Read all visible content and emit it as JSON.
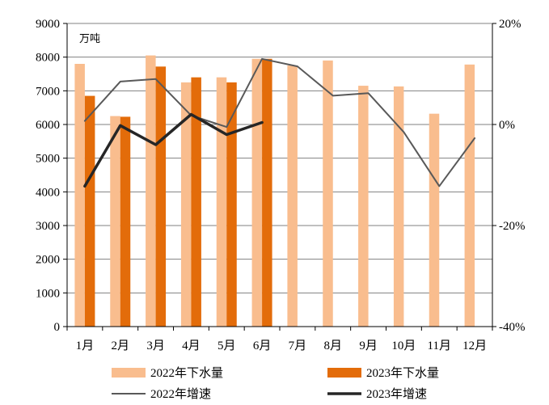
{
  "chart_data": {
    "type": "bar",
    "unit_label": "万吨",
    "categories": [
      "1月",
      "2月",
      "3月",
      "4月",
      "5月",
      "6月",
      "7月",
      "8月",
      "9月",
      "10月",
      "11月",
      "12月"
    ],
    "left_axis": {
      "ylim": [
        0,
        9000
      ],
      "ticks": [
        "0",
        "1000",
        "2000",
        "3000",
        "4000",
        "5000",
        "6000",
        "7000",
        "8000",
        "9000"
      ]
    },
    "right_axis": {
      "ylim": [
        -40,
        20
      ],
      "ticks": [
        "-40%",
        "-20%",
        "0%",
        "20%"
      ]
    },
    "grid": true,
    "legend_position": "bottom",
    "series": [
      {
        "name": "2022年下水量",
        "type": "bar",
        "axis": "left",
        "color": "#F9BD8E",
        "values": [
          7800,
          6250,
          8050,
          7250,
          7400,
          7950,
          7750,
          7900,
          7150,
          7130,
          6320,
          7780
        ]
      },
      {
        "name": "2023年下水量",
        "type": "bar",
        "axis": "left",
        "color": "#E36C0A",
        "values": [
          6850,
          6230,
          7720,
          7400,
          7250,
          7950,
          null,
          null,
          null,
          null,
          null,
          null
        ]
      },
      {
        "name": "2022年增速",
        "type": "line",
        "axis": "right",
        "color": "#595959",
        "values": [
          0.7,
          8.5,
          9.0,
          1.8,
          -0.5,
          13.0,
          11.5,
          5.7,
          6.2,
          -1.5,
          -12.2,
          -2.7
        ]
      },
      {
        "name": "2023年增速",
        "type": "line",
        "axis": "right",
        "color": "#262626",
        "values": [
          -12.2,
          -0.2,
          -4.0,
          2.0,
          -2.0,
          0.4,
          null,
          null,
          null,
          null,
          null,
          null
        ]
      }
    ]
  }
}
